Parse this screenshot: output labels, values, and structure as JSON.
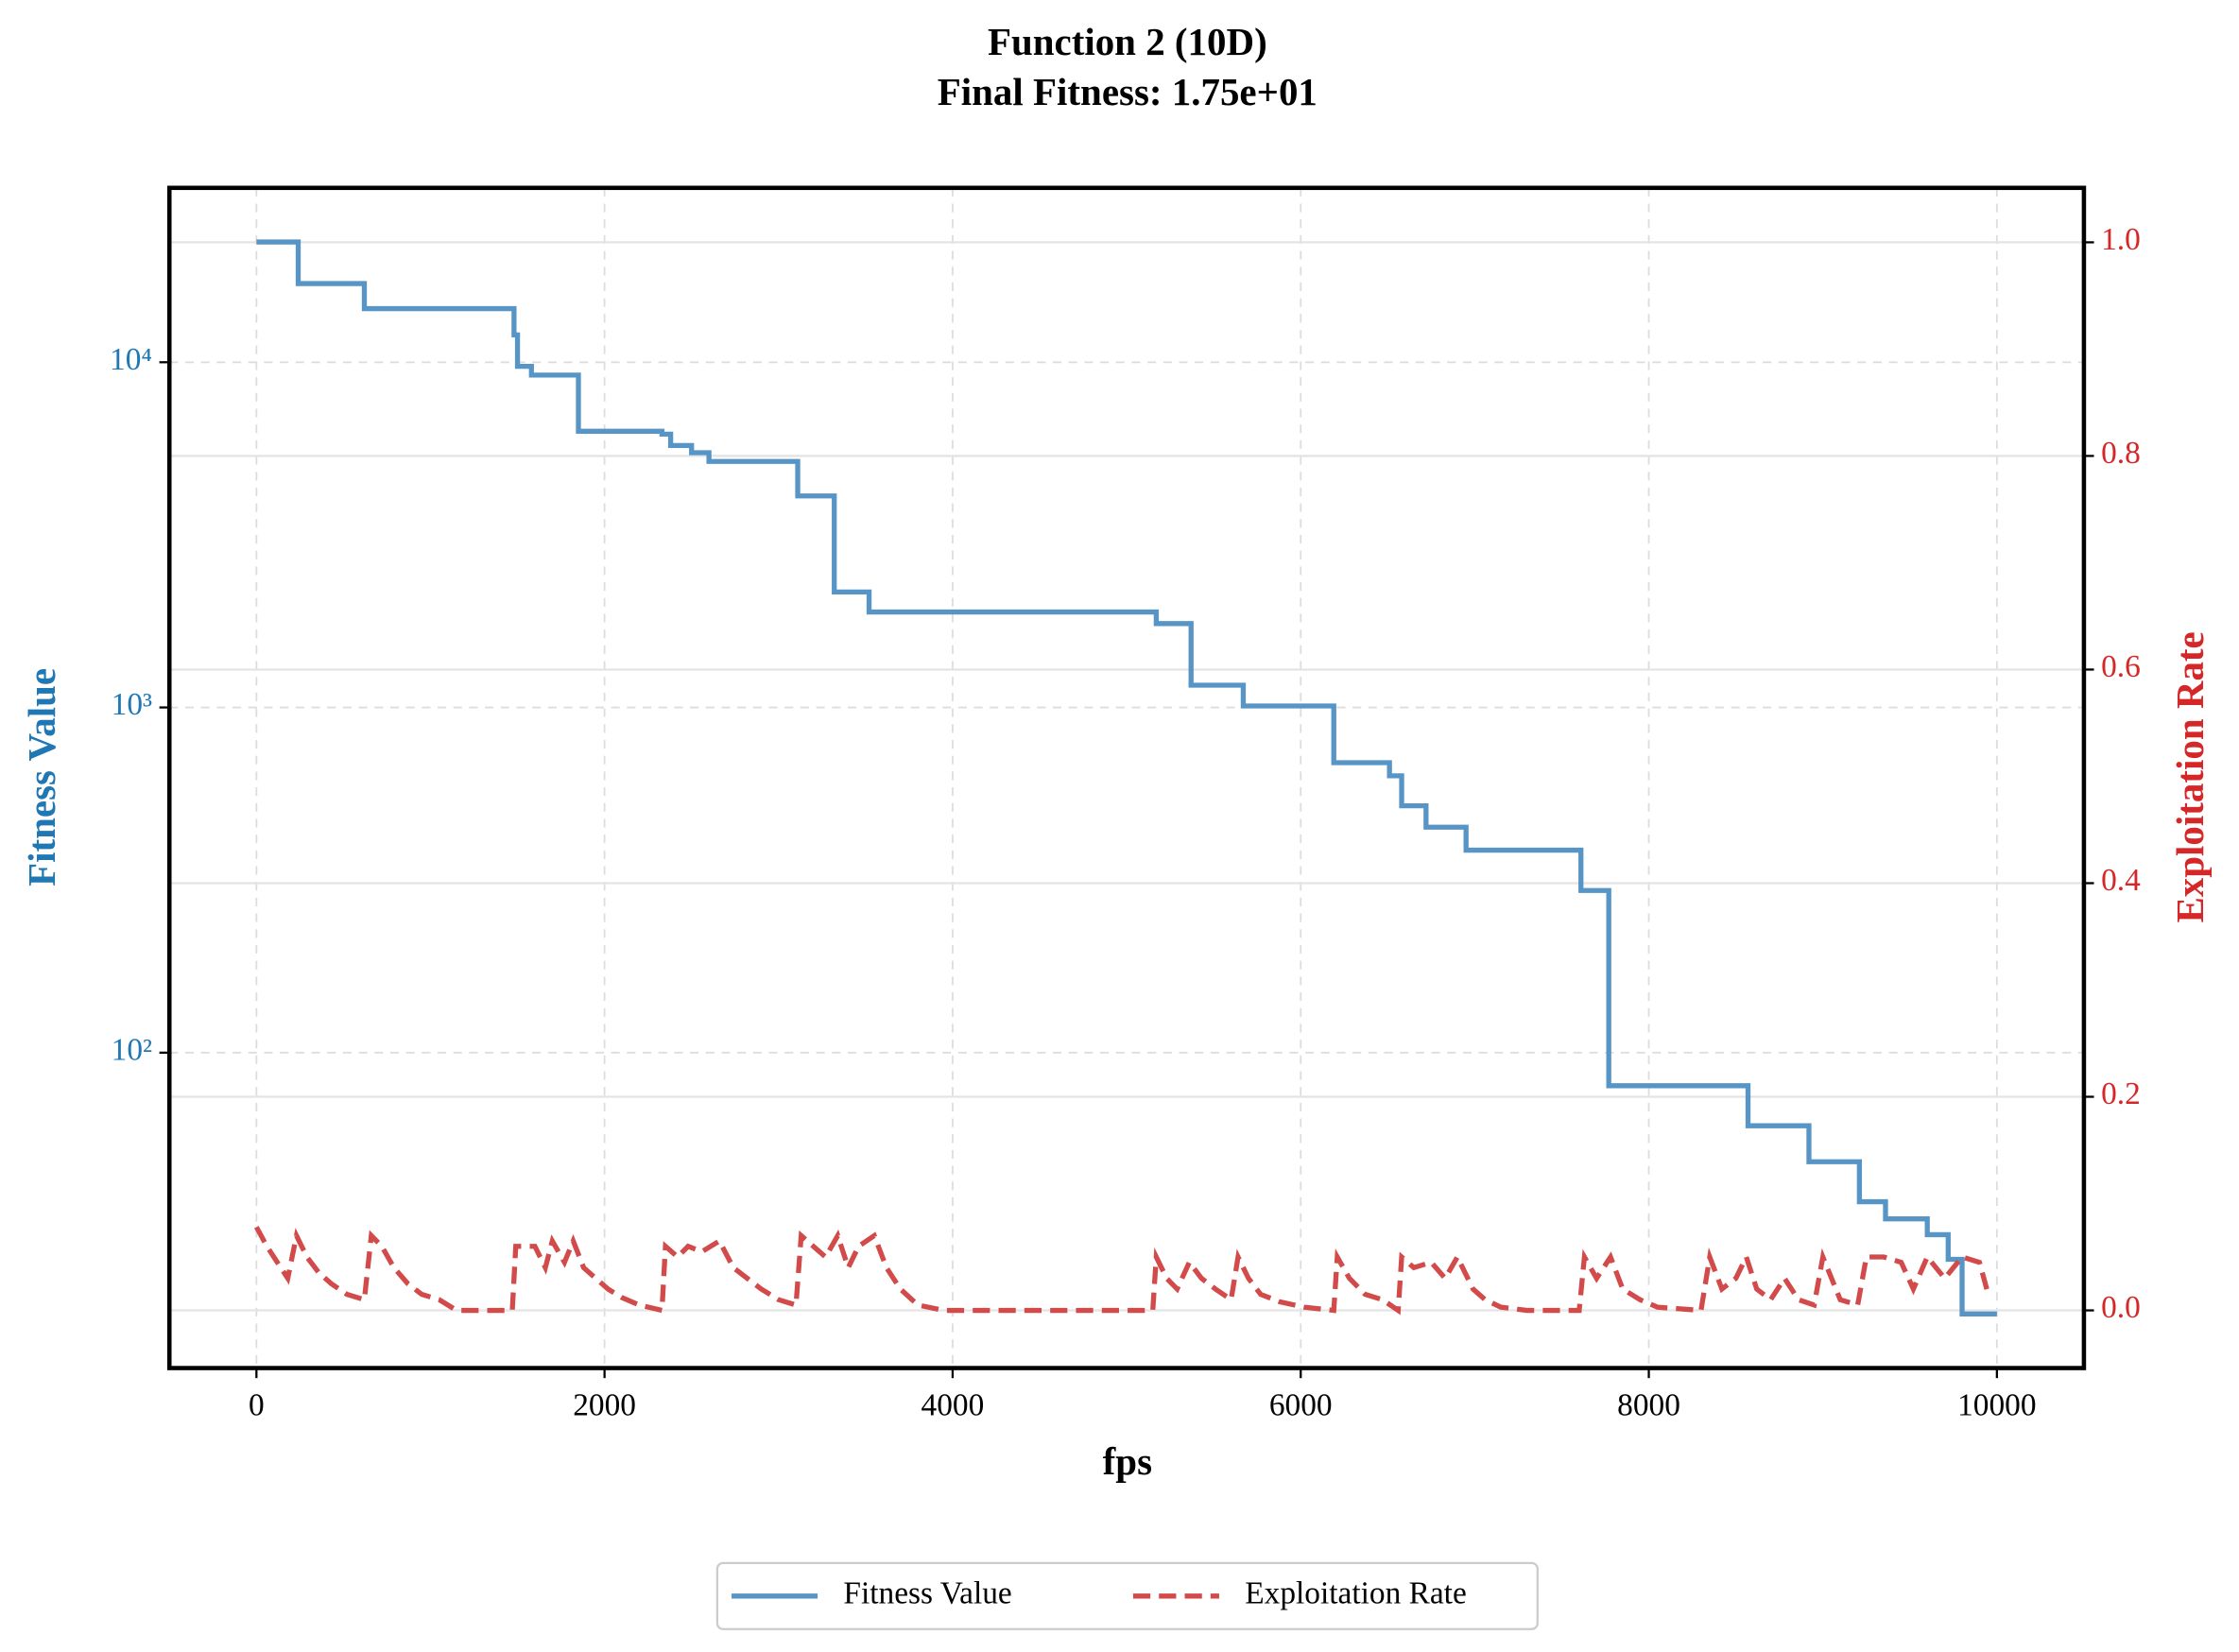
{
  "chart_data": {
    "type": "line",
    "title": "Function 2 (10D)",
    "subtitle": "Final Fitness: 1.75e+01",
    "xlabel": "fps",
    "ylabel": "Fitness Value",
    "y2label": "Exploitation Rate",
    "xlim": [
      -500,
      10500
    ],
    "xticks": [
      0,
      2000,
      4000,
      6000,
      8000,
      10000
    ],
    "ylim": [
      12.2,
      32000
    ],
    "yscale": "log",
    "yticks": [
      {
        "value": 100,
        "label": "10²"
      },
      {
        "value": 1000,
        "label": "10³"
      },
      {
        "value": 10000,
        "label": "10⁴"
      }
    ],
    "y2lim": [
      -0.054,
      1.051
    ],
    "y2ticks": [
      {
        "value": 0,
        "label": "0.0"
      },
      0.2,
      0.4,
      0.6,
      0.8,
      {
        "value": 1,
        "label": "1.0"
      }
    ],
    "grid": true,
    "legend": "bottom",
    "series": [
      {
        "name": "Fitness Value",
        "color": "#5795c6",
        "dash": false,
        "x": [
          0,
          240,
          240,
          620,
          620,
          1480,
          1480,
          1500,
          1500,
          1580,
          1580,
          1850,
          1850,
          2330,
          2330,
          2380,
          2380,
          2500,
          2500,
          2600,
          2600,
          3110,
          3110,
          3320,
          3320,
          3520,
          3520,
          5170,
          5170,
          5370,
          5370,
          5670,
          5670,
          6190,
          6190,
          6510,
          6510,
          6580,
          6580,
          6720,
          6720,
          6950,
          6950,
          7610,
          7610,
          7770,
          7770,
          8570,
          8570,
          8920,
          8920,
          9210,
          9210,
          9360,
          9360,
          9600,
          9600,
          9720,
          9720,
          9800,
          9800,
          10000
        ],
        "values": [
          22300,
          22300,
          16900,
          16900,
          14300,
          14300,
          12000,
          12000,
          9730,
          9730,
          9180,
          9180,
          6310,
          6310,
          6190,
          6190,
          5740,
          5740,
          5470,
          5470,
          5160,
          5160,
          4100,
          4100,
          2160,
          2160,
          1890,
          1890,
          1750,
          1750,
          1160,
          1160,
          1010,
          1010,
          692,
          692,
          634,
          634,
          519,
          519,
          450,
          450,
          386,
          386,
          295,
          295,
          80.2,
          80.2,
          61.4,
          61.4,
          48.3,
          48.3,
          37,
          37,
          33,
          33,
          29.7,
          29.7,
          25.2,
          25.2,
          17.5,
          17.5
        ]
      },
      {
        "name": "Exploitation Rate",
        "color": "#d24a4a",
        "dash": true,
        "axis": "y2",
        "x": [
          0,
          60,
          120,
          180,
          230,
          290,
          360,
          430,
          520,
          620,
          660,
          720,
          790,
          870,
          950,
          1050,
          1150,
          1300,
          1470,
          1490,
          1600,
          1660,
          1700,
          1770,
          1820,
          1880,
          1950,
          2020,
          2100,
          2200,
          2330,
          2350,
          2420,
          2480,
          2560,
          2660,
          2740,
          2820,
          2900,
          3000,
          3100,
          3130,
          3200,
          3270,
          3340,
          3400,
          3460,
          3550,
          3620,
          3700,
          3800,
          3950,
          5150,
          5170,
          5230,
          5290,
          5360,
          5430,
          5510,
          5600,
          5640,
          5700,
          5770,
          5880,
          6020,
          6190,
          6210,
          6280,
          6370,
          6470,
          6560,
          6580,
          6650,
          6750,
          6830,
          6900,
          6990,
          7060,
          7150,
          7300,
          7600,
          7630,
          7700,
          7780,
          7850,
          7950,
          8050,
          8300,
          8350,
          8420,
          8500,
          8560,
          8620,
          8700,
          8780,
          8860,
          8950,
          9000,
          9100,
          9200,
          9250,
          9350,
          9450,
          9520,
          9600,
          9700,
          9800,
          9900,
          9950
        ],
        "values": [
          0.078,
          0.06,
          0.045,
          0.03,
          0.07,
          0.05,
          0.035,
          0.025,
          0.015,
          0.01,
          0.07,
          0.06,
          0.04,
          0.025,
          0.015,
          0.01,
          0,
          0,
          0,
          0.06,
          0.06,
          0.04,
          0.065,
          0.045,
          0.065,
          0.04,
          0.03,
          0.02,
          0.012,
          0.005,
          0,
          0.06,
          0.05,
          0.06,
          0.055,
          0.065,
          0.04,
          0.03,
          0.02,
          0.01,
          0.005,
          0.07,
          0.06,
          0.05,
          0.07,
          0.04,
          0.06,
          0.07,
          0.04,
          0.02,
          0.005,
          0,
          0,
          0.05,
          0.03,
          0.02,
          0.045,
          0.03,
          0.02,
          0.01,
          0.05,
          0.03,
          0.015,
          0.008,
          0.003,
          0,
          0.05,
          0.03,
          0.015,
          0.01,
          0,
          0.05,
          0.04,
          0.045,
          0.03,
          0.05,
          0.02,
          0.01,
          0.003,
          0,
          0,
          0.05,
          0.03,
          0.05,
          0.02,
          0.01,
          0.003,
          0,
          0.05,
          0.02,
          0.03,
          0.05,
          0.02,
          0.01,
          0.03,
          0.01,
          0.005,
          0.05,
          0.01,
          0.005,
          0.05,
          0.05,
          0.045,
          0.02,
          0.05,
          0.03,
          0.05,
          0.045,
          0.015
        ]
      }
    ]
  }
}
